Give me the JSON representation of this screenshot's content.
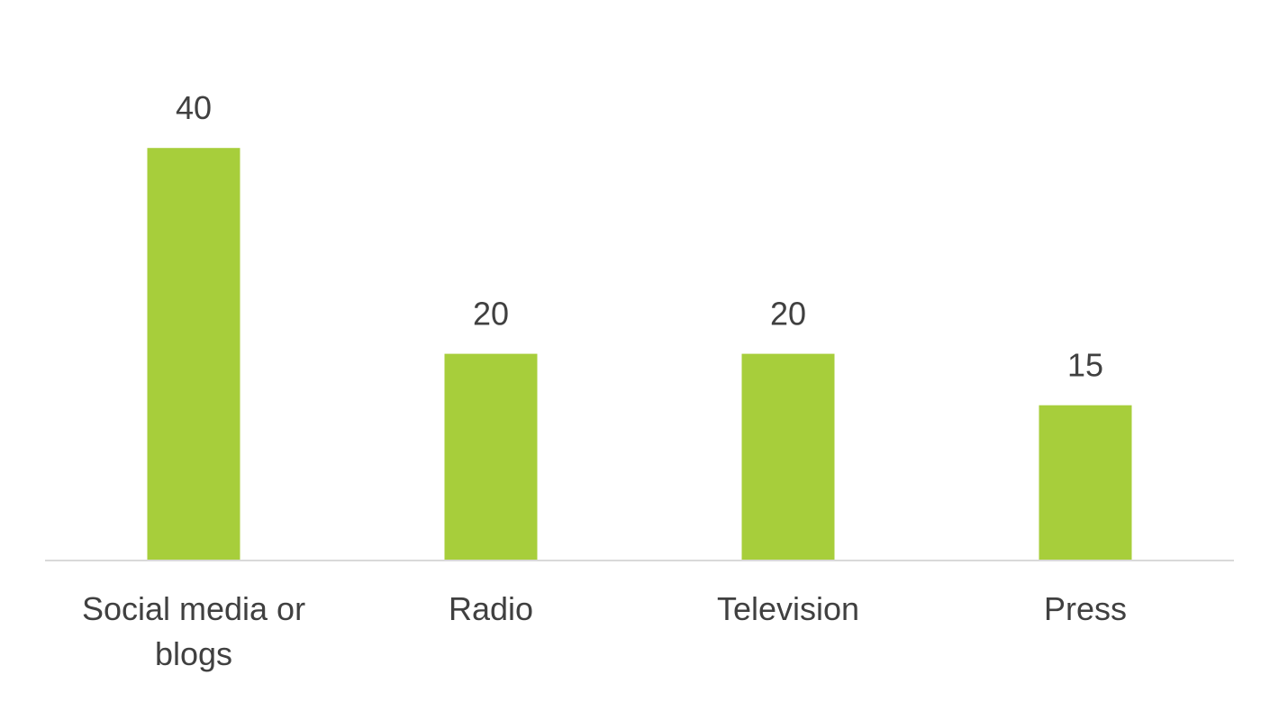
{
  "chart_data": {
    "type": "bar",
    "categories": [
      "Social media or blogs",
      "Radio",
      "Television",
      "Press"
    ],
    "category_lines": [
      [
        "Social media or",
        "blogs"
      ],
      [
        "Radio"
      ],
      [
        "Television"
      ],
      [
        "Press"
      ]
    ],
    "values": [
      40,
      20,
      20,
      15
    ],
    "data_labels": [
      "40",
      "20",
      "20",
      "15"
    ],
    "title": "",
    "xlabel": "",
    "ylabel": "",
    "ylim": [
      0,
      45
    ],
    "grid": false,
    "legend": "none",
    "colors": {
      "bar": "#A7CE3B",
      "axis": "#D9D9D9",
      "text": "#404040"
    }
  }
}
